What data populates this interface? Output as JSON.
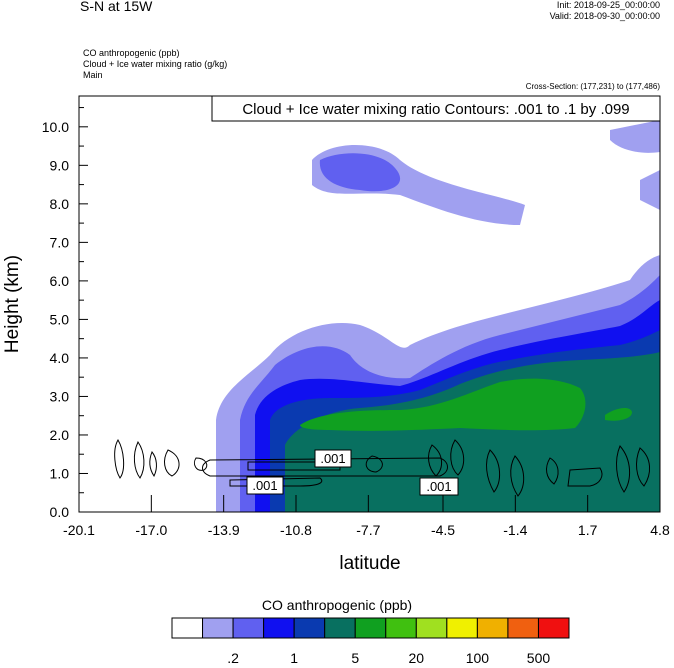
{
  "header": {
    "title": "S-N at 15W",
    "init": "Init: 2018-09-25_00:00:00",
    "valid": "Valid: 2018-09-30_00:00:00",
    "field_lines": [
      "CO anthropogenic   (ppb)",
      "Cloud + Ice water mixing ratio   (g/kg)",
      "Main"
    ],
    "cross_section": "Cross-Section: (177,231) to (177,486)"
  },
  "chart_data": {
    "type": "heatmap",
    "title": "",
    "xlabel": "latitude",
    "ylabel": "Height (km)",
    "xlim": [
      -20.1,
      4.8
    ],
    "ylim": [
      0.0,
      10.8
    ],
    "x_ticks": [
      "-20.1",
      "-17.0",
      "-13.9",
      "-10.8",
      "-7.7",
      "-4.5",
      "-1.4",
      "1.7",
      "4.8"
    ],
    "x_tick_values": [
      -20.1,
      -17.0,
      -13.9,
      -10.8,
      -7.7,
      -4.5,
      -1.4,
      1.7,
      4.8
    ],
    "y_ticks": [
      "0.0",
      "1.0",
      "2.0",
      "3.0",
      "4.0",
      "5.0",
      "6.0",
      "7.0",
      "8.0",
      "9.0",
      "10.0"
    ],
    "y_tick_values": [
      0,
      1,
      2,
      3,
      4,
      5,
      6,
      7,
      8,
      9,
      10
    ],
    "contour_title": "Cloud + Ice water mixing ratio Contours: .001 to .1 by .099",
    "contour_labels": [
      ".001",
      ".001",
      ".001"
    ],
    "legend": {
      "title": "CO anthropogenic  (ppb)",
      "colors": [
        "#ffffff",
        "#a0a0f0",
        "#6060f0",
        "#1010f0",
        "#0a3ab0",
        "#087060",
        "#10a020",
        "#40c010",
        "#a0e020",
        "#f0f000",
        "#f0b000",
        "#f06010",
        "#f01010"
      ],
      "labels": [
        ".2",
        "1",
        "5",
        "20",
        "100",
        "500"
      ]
    },
    "colors": {
      "c1": "#a0a0f0",
      "c2": "#6060f0",
      "c3": "#1010f0",
      "c4": "#0a3ab0",
      "c5": "#087060",
      "c6": "#10a020"
    }
  }
}
